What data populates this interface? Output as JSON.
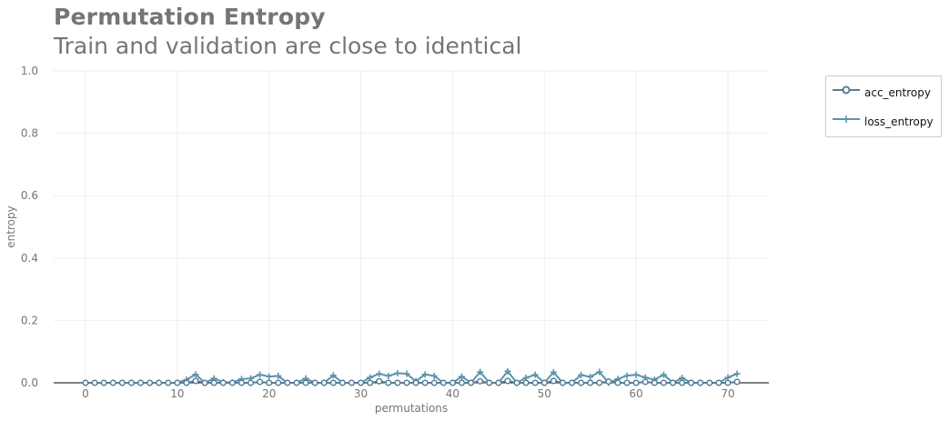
{
  "title": "Permutation Entropy",
  "subtitle": "Train and validation are close to identical",
  "colors": {
    "acc": "#577d96",
    "loss": "#5a93b0",
    "text": "#757575",
    "grid": "#eeeeee",
    "axis": "#000000"
  },
  "chart_data": {
    "type": "line",
    "title": "Permutation Entropy",
    "subtitle": "Train and validation are close to identical",
    "xlabel": "permutations",
    "ylabel": "entropy",
    "xlim": [
      0,
      71
    ],
    "ylim": [
      0,
      1.0
    ],
    "xticks": [
      0,
      10,
      20,
      30,
      40,
      50,
      60,
      70
    ],
    "yticks": [
      "0.0",
      "0.2",
      "0.4",
      "0.6",
      "0.8",
      "1.0"
    ],
    "grid": true,
    "legend_position": "top-right outside",
    "x": [
      0,
      1,
      2,
      3,
      4,
      5,
      6,
      7,
      8,
      9,
      10,
      11,
      12,
      13,
      14,
      15,
      16,
      17,
      18,
      19,
      20,
      21,
      22,
      23,
      24,
      25,
      26,
      27,
      28,
      29,
      30,
      31,
      32,
      33,
      34,
      35,
      36,
      37,
      38,
      39,
      40,
      41,
      42,
      43,
      44,
      45,
      46,
      47,
      48,
      49,
      50,
      51,
      52,
      53,
      54,
      55,
      56,
      57,
      58,
      59,
      60,
      61,
      62,
      63,
      64,
      65,
      66,
      67,
      68,
      69,
      70,
      71
    ],
    "series": [
      {
        "name": "acc_entropy",
        "marker": "circle",
        "values": [
          0,
          0,
          0,
          0,
          0,
          0,
          0,
          0,
          0,
          0,
          0,
          0,
          0.006,
          0,
          0,
          0,
          0,
          0,
          0,
          0.003,
          0,
          0,
          0,
          0,
          0,
          0,
          0,
          0,
          0,
          0,
          0,
          0,
          0.005,
          0,
          0,
          0,
          0,
          0,
          0,
          0,
          0,
          0,
          0,
          0.005,
          0,
          0,
          0.006,
          0,
          0,
          0,
          0,
          0.006,
          0,
          0,
          0,
          0,
          0,
          0.004,
          0,
          0,
          0,
          0.003,
          0,
          0,
          0,
          0,
          0,
          0,
          0,
          0,
          0,
          0.003
        ]
      },
      {
        "name": "loss_entropy",
        "marker": "plus",
        "values": [
          0,
          0,
          0,
          0,
          0,
          0,
          0,
          0,
          0,
          0,
          0,
          0.01,
          0.027,
          0,
          0.014,
          0.002,
          0.001,
          0.012,
          0.014,
          0.026,
          0.02,
          0.022,
          0,
          0,
          0.014,
          0,
          0,
          0.024,
          0,
          0,
          0,
          0.017,
          0.029,
          0.022,
          0.031,
          0.029,
          0.005,
          0.027,
          0.022,
          0,
          0,
          0.02,
          0,
          0.035,
          0,
          0,
          0.037,
          0,
          0.016,
          0.026,
          0,
          0.034,
          0,
          0,
          0.025,
          0.019,
          0.035,
          0,
          0.012,
          0.023,
          0.026,
          0.017,
          0.01,
          0.026,
          0,
          0.016,
          0,
          0,
          0,
          0,
          0.017,
          0.029
        ]
      }
    ]
  }
}
